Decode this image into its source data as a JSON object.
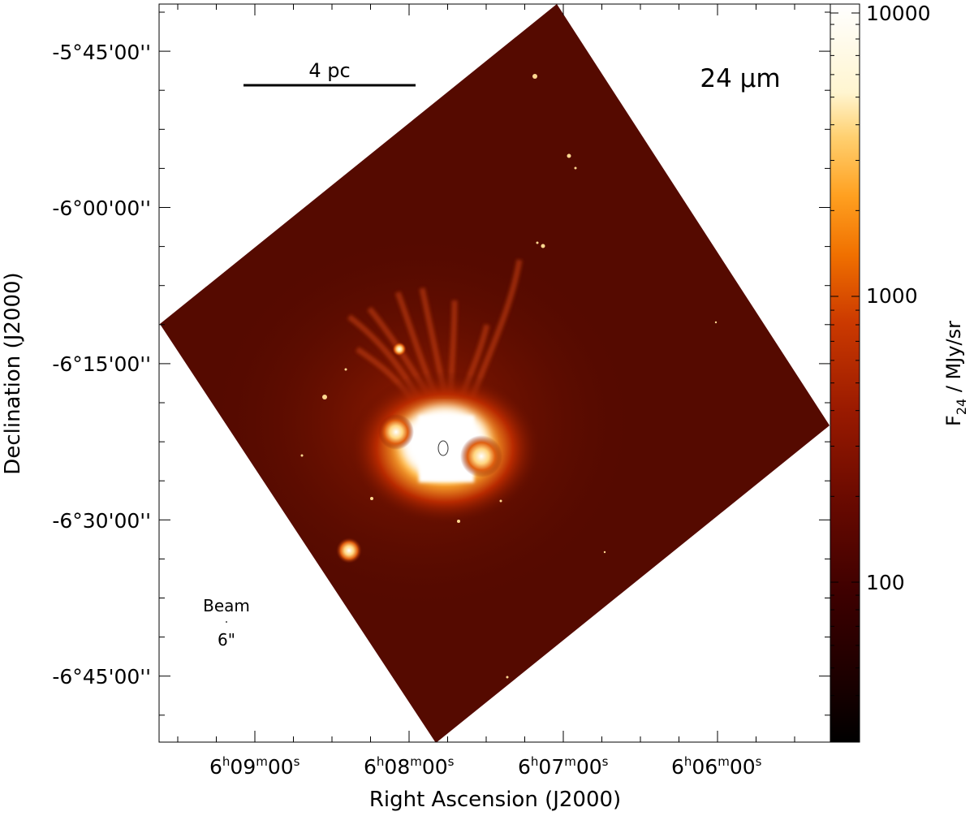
{
  "image": {
    "band_label": "24 µm",
    "scale_bar_label": "4 pc",
    "beam_label": "Beam",
    "beam_size_label": "6\"",
    "xlabel": "Right Ascension (J2000)",
    "ylabel": "Declination (J2000)",
    "x_ticks": [
      {
        "h": "6",
        "m": "09",
        "s": "00"
      },
      {
        "h": "6",
        "m": "08",
        "s": "00"
      },
      {
        "h": "6",
        "m": "07",
        "s": "00"
      },
      {
        "h": "6",
        "m": "06",
        "s": "00"
      }
    ],
    "y_ticks": [
      "-5°45'00''",
      "-6°00'00''",
      "-6°15'00''",
      "-6°30'00''",
      "-6°45'00''"
    ],
    "colorbar": {
      "label_main": "F",
      "label_sub": "24",
      "label_unit": " / MJy/sr",
      "ticks": [
        "10000",
        "1000",
        "100"
      ],
      "colors": [
        "#000000",
        "#1a0000",
        "#3d0000",
        "#6a0a00",
        "#9a1a00",
        "#cc3a00",
        "#f07000",
        "#ffa020",
        "#ffd070",
        "#fff5d0",
        "#ffffff"
      ]
    },
    "bright_color": "#ffffff",
    "background_color": "#5a0c00"
  }
}
